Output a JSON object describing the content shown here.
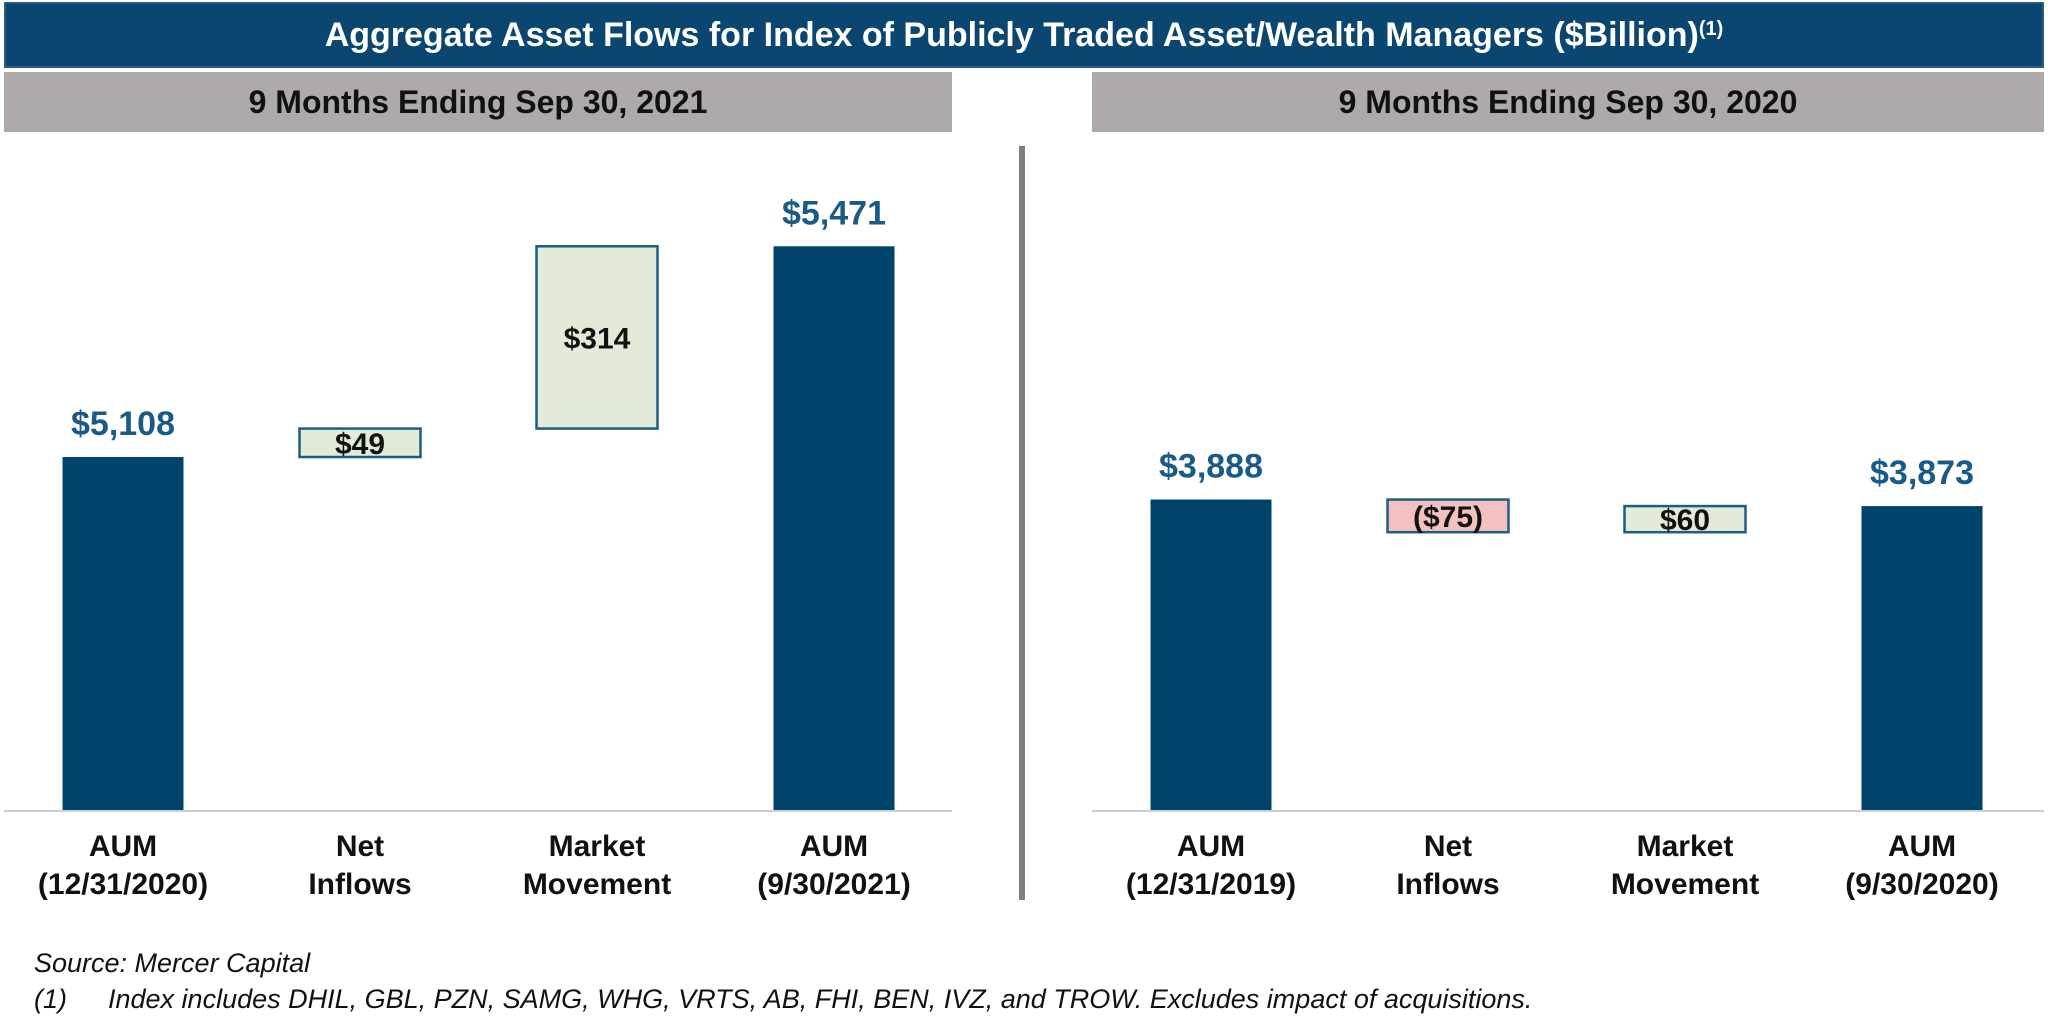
{
  "header": {
    "title": "Aggregate Asset Flows for Index of Publicly Traded Asset/Wealth Managers ($Billion)",
    "title_superscript": "(1)"
  },
  "chart_data": [
    {
      "type": "waterfall",
      "subtitle": "9 Months Ending Sep 30, 2021",
      "categories": [
        "AUM (12/31/2020)",
        "Net Inflows",
        "Market Movement",
        "AUM (9/30/2021)"
      ],
      "measure": [
        "absolute",
        "relative",
        "relative",
        "absolute"
      ],
      "values": [
        5108,
        49,
        314,
        5471
      ],
      "value_labels": [
        "$5,108",
        "$49",
        "$314",
        "$5,471"
      ],
      "color": "#00446b",
      "increase_color": "#e3ebd8",
      "decrease_color": "#f4c0c0",
      "ylim": [
        4500,
        5580
      ]
    },
    {
      "type": "waterfall",
      "subtitle": "9 Months Ending Sep 30, 2020",
      "categories": [
        "AUM (12/31/2019)",
        "Net Inflows",
        "Market Movement",
        "AUM (9/30/2020)"
      ],
      "measure": [
        "absolute",
        "relative",
        "relative",
        "absolute"
      ],
      "values": [
        3888,
        -75,
        60,
        3873
      ],
      "value_labels": [
        "$3,888",
        "($75)",
        "$60",
        "$3,873"
      ],
      "color": "#00446b",
      "increase_color": "#e3ebd8",
      "decrease_color": "#f4c0c0",
      "ylim": [
        3175,
        4615
      ]
    }
  ],
  "source": "Source: Mercer Capital",
  "footnote_marker": "(1)",
  "footnote": "Index includes DHIL, GBL, PZN, SAMG, WHG, VRTS, AB, FHI, BEN, IVZ, and TROW.  Excludes impact of acquisitions."
}
